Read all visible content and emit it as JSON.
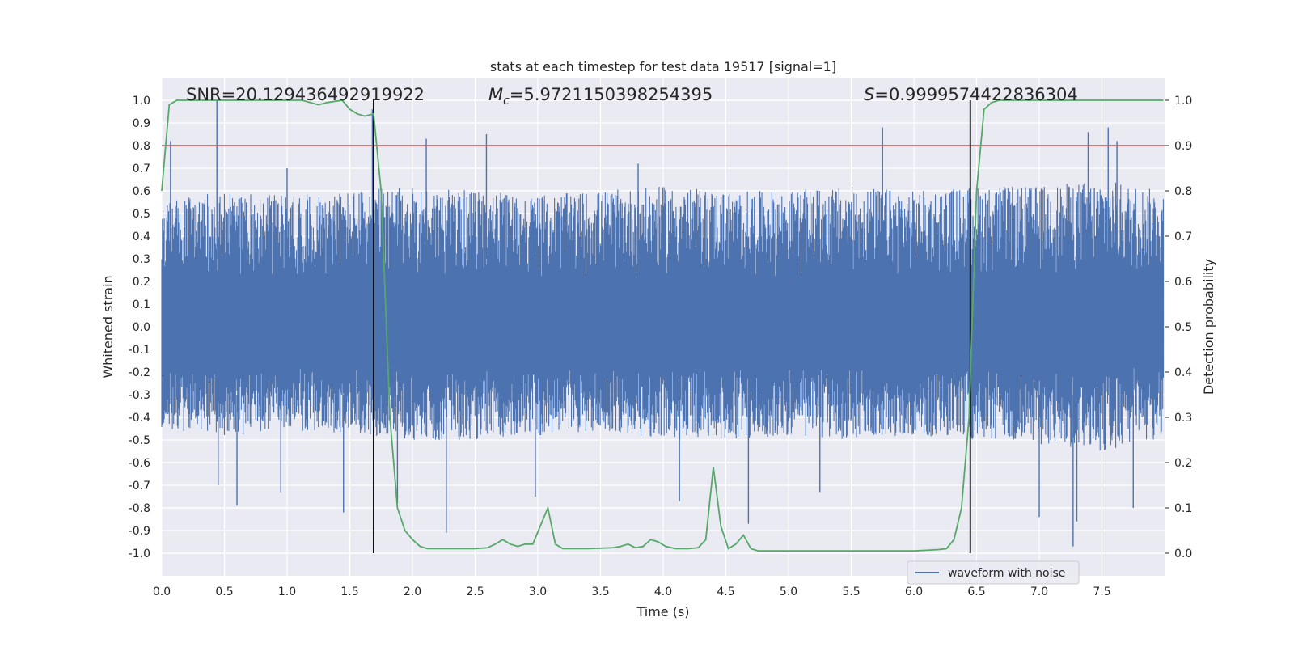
{
  "chart_data": {
    "type": "line",
    "title": "stats at each timestep for test data 19517 [signal=1]",
    "xlabel": "Time (s)",
    "ylabel": "Whitened strain",
    "ylabel_right": "Detection probability",
    "xlim": [
      0.0,
      8.0
    ],
    "ylim": [
      -1.1,
      1.1
    ],
    "ylim_right": [
      -0.05,
      1.05
    ],
    "x_ticks": [
      0.0,
      0.5,
      1.0,
      1.5,
      2.0,
      2.5,
      3.0,
      3.5,
      4.0,
      4.5,
      5.0,
      5.5,
      6.0,
      6.5,
      7.0,
      7.5
    ],
    "x_tick_labels": [
      "0.0",
      "0.5",
      "1.0",
      "1.5",
      "2.0",
      "2.5",
      "3.0",
      "3.5",
      "4.0",
      "4.5",
      "5.0",
      "5.5",
      "6.0",
      "6.5",
      "7.0",
      "7.5"
    ],
    "y_ticks": [
      1.0,
      0.9,
      0.8,
      0.7,
      0.6,
      0.5,
      0.4,
      0.3,
      0.2,
      0.1,
      0.0,
      -0.1,
      -0.2,
      -0.3,
      -0.4,
      -0.5,
      -0.6,
      -0.7,
      -0.8,
      -0.9,
      -1.0
    ],
    "y_tick_labels": [
      "1.0",
      "0.9",
      "0.8",
      "0.7",
      "0.6",
      "0.5",
      "0.4",
      "0.3",
      "0.2",
      "0.1",
      "0.0",
      "-0.1",
      "-0.2",
      "-0.3",
      "-0.4",
      "-0.5",
      "-0.6",
      "-0.7",
      "-0.8",
      "-0.9",
      "-1.0"
    ],
    "y_ticks_right": [
      1.0,
      0.9,
      0.8,
      0.7,
      0.6,
      0.5,
      0.4,
      0.3,
      0.2,
      0.1,
      0.0
    ],
    "y_tick_labels_right": [
      "1.0",
      "0.9",
      "0.8",
      "0.7",
      "0.6",
      "0.5",
      "0.4",
      "0.3",
      "0.2",
      "0.1",
      "0.0"
    ],
    "grid": true,
    "legend": {
      "position": "bottom-right",
      "entries": [
        "waveform with noise"
      ]
    },
    "annotations": {
      "snr": "SNR=20.129436492919922",
      "mc_symbol": "M",
      "mc_sub": "c",
      "mc_value": "=5.9721150398254395",
      "s_symbol": "S",
      "s_value": "=0.9999574422836304"
    },
    "threshold": {
      "value": 0.8,
      "color": "#c44e52"
    },
    "vertical_markers": [
      1.69,
      6.45
    ],
    "series": [
      {
        "name": "waveform with noise",
        "axis": "left",
        "color": "#4c72b0",
        "envelope": {
          "x": [
            0.0,
            0.5,
            1.0,
            1.5,
            2.0,
            2.5,
            3.0,
            3.5,
            4.0,
            4.5,
            5.0,
            5.5,
            6.0,
            6.5,
            7.0,
            7.5,
            7.99
          ],
          "typical_max": [
            0.55,
            0.6,
            0.58,
            0.6,
            0.62,
            0.6,
            0.58,
            0.6,
            0.62,
            0.6,
            0.6,
            0.62,
            0.6,
            0.62,
            0.62,
            0.65,
            0.6
          ],
          "typical_min": [
            -0.45,
            -0.48,
            -0.46,
            -0.47,
            -0.5,
            -0.5,
            -0.48,
            -0.46,
            -0.5,
            -0.5,
            -0.48,
            -0.5,
            -0.48,
            -0.5,
            -0.52,
            -0.55,
            -0.5
          ]
        },
        "spikes": [
          {
            "x": 0.44,
            "y": 1.0
          },
          {
            "x": 0.07,
            "y": 0.82
          },
          {
            "x": 1.0,
            "y": 0.7
          },
          {
            "x": 1.68,
            "y": 0.96
          },
          {
            "x": 2.11,
            "y": 0.83
          },
          {
            "x": 2.59,
            "y": 0.85
          },
          {
            "x": 3.8,
            "y": 0.72
          },
          {
            "x": 5.75,
            "y": 0.88
          },
          {
            "x": 7.39,
            "y": 0.86
          },
          {
            "x": 7.55,
            "y": 0.88
          },
          {
            "x": 7.62,
            "y": 0.82
          },
          {
            "x": 0.45,
            "y": -0.7
          },
          {
            "x": 0.6,
            "y": -0.79
          },
          {
            "x": 0.95,
            "y": -0.73
          },
          {
            "x": 1.45,
            "y": -0.82
          },
          {
            "x": 1.88,
            "y": -0.78
          },
          {
            "x": 2.27,
            "y": -0.91
          },
          {
            "x": 2.98,
            "y": -0.75
          },
          {
            "x": 4.13,
            "y": -0.77
          },
          {
            "x": 4.68,
            "y": -0.87
          },
          {
            "x": 5.25,
            "y": -0.73
          },
          {
            "x": 7.27,
            "y": -0.97
          },
          {
            "x": 7.3,
            "y": -0.86
          },
          {
            "x": 7.0,
            "y": -0.84
          },
          {
            "x": 7.75,
            "y": -0.8
          }
        ]
      },
      {
        "name": "detection probability",
        "axis": "right",
        "color": "#55a868",
        "x": [
          0.0,
          0.06,
          0.12,
          0.25,
          0.5,
          0.75,
          1.0,
          1.12,
          1.25,
          1.32,
          1.44,
          1.5,
          1.56,
          1.62,
          1.69,
          1.75,
          1.82,
          1.88,
          1.94,
          2.0,
          2.06,
          2.12,
          2.25,
          2.38,
          2.5,
          2.6,
          2.66,
          2.72,
          2.78,
          2.84,
          2.9,
          2.96,
          3.02,
          3.08,
          3.14,
          3.2,
          3.4,
          3.6,
          3.66,
          3.72,
          3.78,
          3.84,
          3.9,
          3.96,
          4.02,
          4.1,
          4.2,
          4.28,
          4.34,
          4.4,
          4.46,
          4.52,
          4.58,
          4.64,
          4.7,
          4.76,
          5.0,
          5.5,
          6.0,
          6.2,
          6.26,
          6.32,
          6.38,
          6.44,
          6.5,
          6.56,
          6.62,
          6.68,
          6.75,
          7.0,
          7.5,
          7.99
        ],
        "y": [
          0.8,
          0.99,
          1.0,
          1.0,
          1.0,
          1.0,
          1.0,
          1.0,
          0.99,
          0.995,
          1.0,
          0.98,
          0.97,
          0.965,
          0.97,
          0.8,
          0.3,
          0.1,
          0.05,
          0.03,
          0.015,
          0.01,
          0.01,
          0.01,
          0.01,
          0.012,
          0.02,
          0.03,
          0.02,
          0.015,
          0.02,
          0.02,
          0.06,
          0.1,
          0.02,
          0.01,
          0.01,
          0.012,
          0.015,
          0.02,
          0.012,
          0.015,
          0.03,
          0.025,
          0.015,
          0.01,
          0.01,
          0.012,
          0.03,
          0.19,
          0.06,
          0.01,
          0.02,
          0.04,
          0.01,
          0.005,
          0.005,
          0.005,
          0.005,
          0.008,
          0.01,
          0.03,
          0.1,
          0.3,
          0.8,
          0.98,
          0.995,
          1.0,
          1.0,
          1.0,
          1.0,
          1.0
        ]
      }
    ]
  }
}
